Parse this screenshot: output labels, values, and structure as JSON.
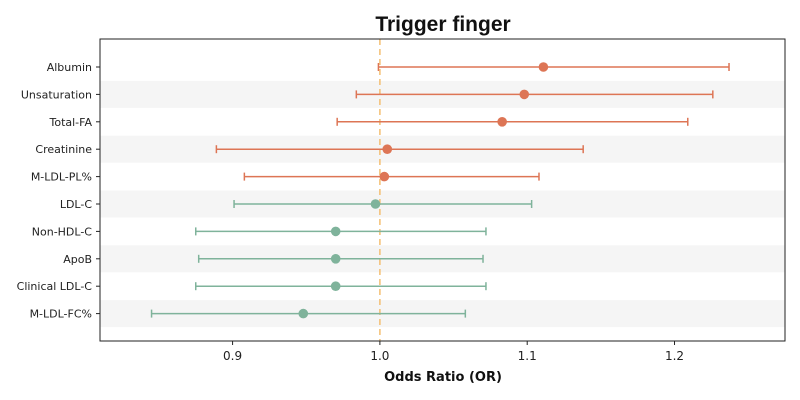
{
  "chart_data": {
    "type": "forest",
    "title": "Trigger finger",
    "xlabel": "Odds Ratio (OR)",
    "xlim": [
      0.81,
      1.275
    ],
    "xticks": [
      0.9,
      1.0,
      1.1,
      1.2
    ],
    "xtick_labels": [
      "0.9",
      "1.0",
      "1.1",
      "1.2"
    ],
    "reference_line": 1.0,
    "reference_color": "#f4c27a",
    "band_color": "#f5f5f5",
    "colors": {
      "positive": "#dd7555",
      "negative": "#7fb39b"
    },
    "rows": [
      {
        "label": "Albumin",
        "or": 1.111,
        "lo": 0.999,
        "hi": 1.237,
        "group": "positive"
      },
      {
        "label": "Unsaturation",
        "or": 1.098,
        "lo": 0.984,
        "hi": 1.226,
        "group": "positive"
      },
      {
        "label": "Total-FA",
        "or": 1.083,
        "lo": 0.971,
        "hi": 1.209,
        "group": "positive"
      },
      {
        "label": "Creatinine",
        "or": 1.005,
        "lo": 0.889,
        "hi": 1.138,
        "group": "positive"
      },
      {
        "label": "M-LDL-PL%",
        "or": 1.003,
        "lo": 0.908,
        "hi": 1.108,
        "group": "positive"
      },
      {
        "label": "LDL-C",
        "or": 0.997,
        "lo": 0.901,
        "hi": 1.103,
        "group": "negative"
      },
      {
        "label": "Non-HDL-C",
        "or": 0.97,
        "lo": 0.875,
        "hi": 1.072,
        "group": "negative"
      },
      {
        "label": "ApoB",
        "or": 0.97,
        "lo": 0.877,
        "hi": 1.07,
        "group": "negative"
      },
      {
        "label": "Clinical LDL-C",
        "or": 0.97,
        "lo": 0.875,
        "hi": 1.072,
        "group": "negative"
      },
      {
        "label": "M-LDL-FC%",
        "or": 0.948,
        "lo": 0.845,
        "hi": 1.058,
        "group": "negative"
      }
    ]
  }
}
